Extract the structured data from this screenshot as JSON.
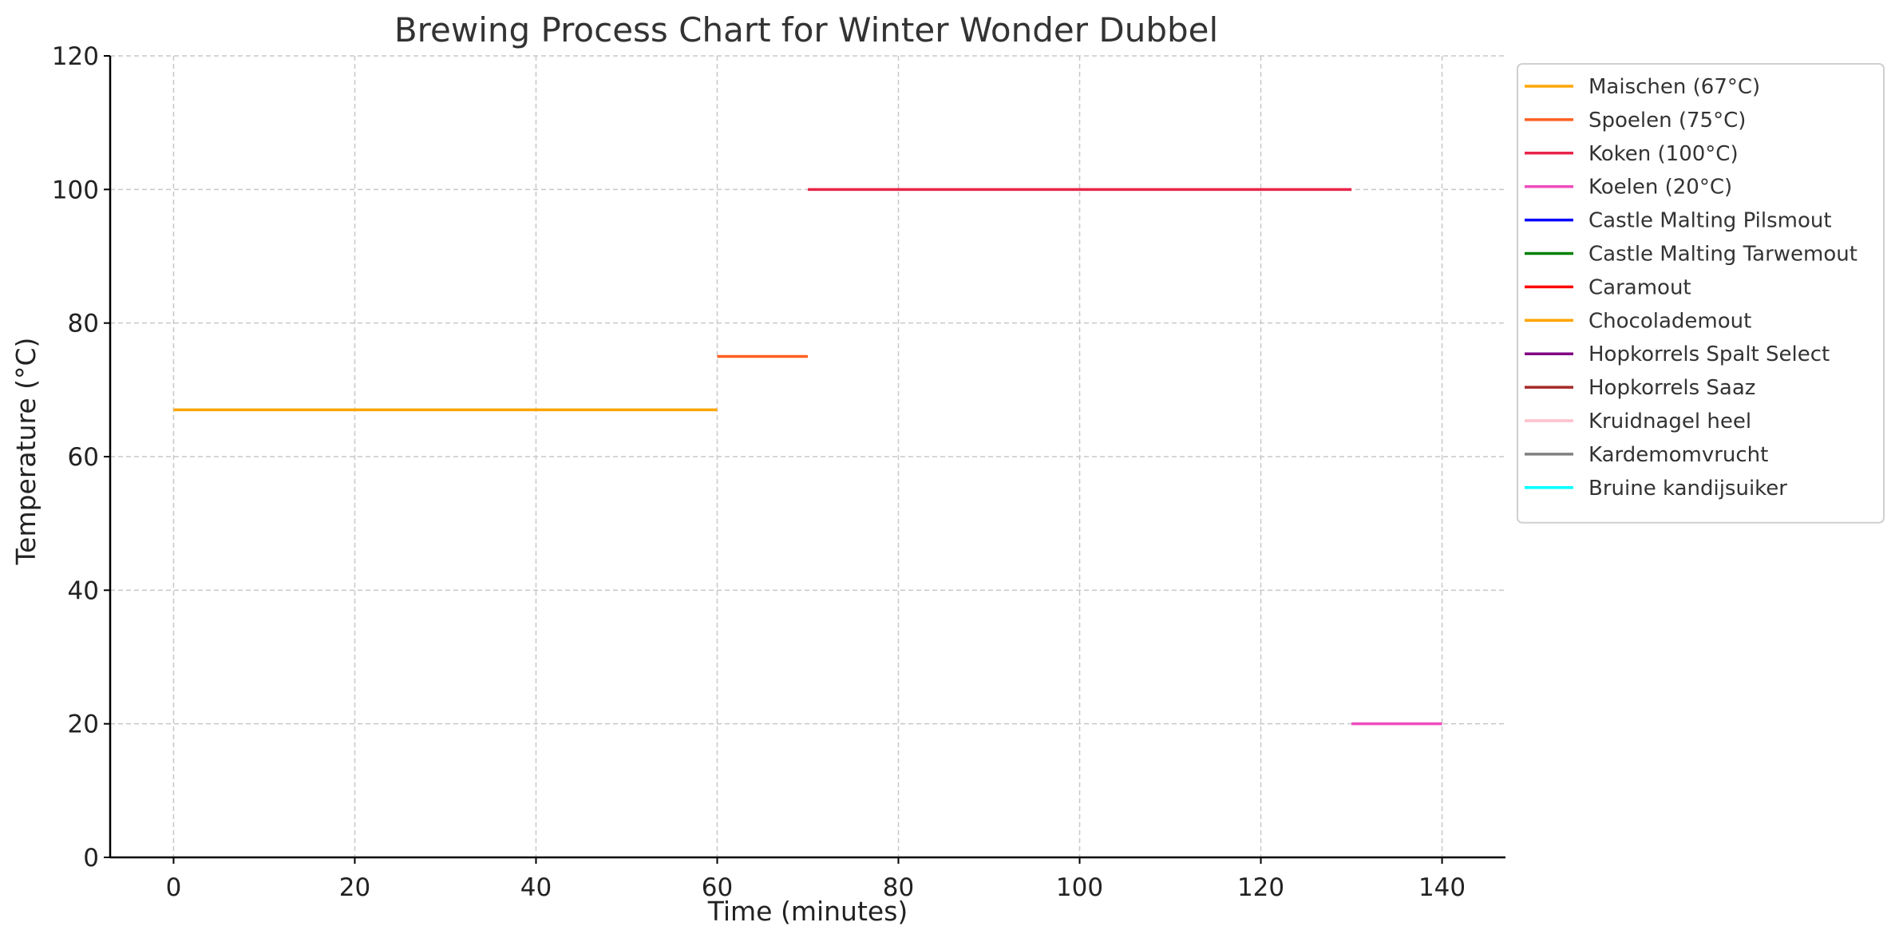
{
  "chart_data": {
    "type": "line",
    "title": "Brewing Process Chart for Winter Wonder Dubbel",
    "xlabel": "Time (minutes)",
    "ylabel": "Temperature (°C)",
    "xlim": [
      -7,
      147
    ],
    "ylim": [
      0,
      120
    ],
    "x_ticks": [
      0,
      20,
      40,
      60,
      80,
      100,
      120,
      140
    ],
    "y_ticks": [
      0,
      20,
      40,
      60,
      80,
      100,
      120
    ],
    "grid": true,
    "legend_position": "outside-right-top",
    "series": [
      {
        "name": "Maischen (67°C)",
        "color": "#FFA500",
        "x": [
          0,
          60
        ],
        "y": [
          67,
          67
        ]
      },
      {
        "name": "Spoelen (75°C)",
        "color": "#FF5F1F",
        "x": [
          60,
          70
        ],
        "y": [
          75,
          75
        ]
      },
      {
        "name": "Koken (100°C)",
        "color": "#E8254B",
        "x": [
          70,
          130
        ],
        "y": [
          100,
          100
        ]
      },
      {
        "name": "Koelen (20°C)",
        "color": "#F04CBE",
        "x": [
          130,
          140
        ],
        "y": [
          20,
          20
        ]
      },
      {
        "name": "Castle Malting Pilsmout",
        "color": "#0000FF",
        "x": [],
        "y": []
      },
      {
        "name": "Castle Malting Tarwemout",
        "color": "#008000",
        "x": [],
        "y": []
      },
      {
        "name": "Caramout",
        "color": "#FF0000",
        "x": [],
        "y": []
      },
      {
        "name": "Chocolademout",
        "color": "#FFA500",
        "x": [],
        "y": []
      },
      {
        "name": "Hopkorrels Spalt Select",
        "color": "#800080",
        "x": [],
        "y": []
      },
      {
        "name": "Hopkorrels Saaz",
        "color": "#A52A2A",
        "x": [],
        "y": []
      },
      {
        "name": "Kruidnagel heel",
        "color": "#FFC0CB",
        "x": [],
        "y": []
      },
      {
        "name": "Kardemomvrucht",
        "color": "#808080",
        "x": [],
        "y": []
      },
      {
        "name": "Bruine kandijsuiker",
        "color": "#00FFFF",
        "x": [],
        "y": []
      }
    ]
  }
}
